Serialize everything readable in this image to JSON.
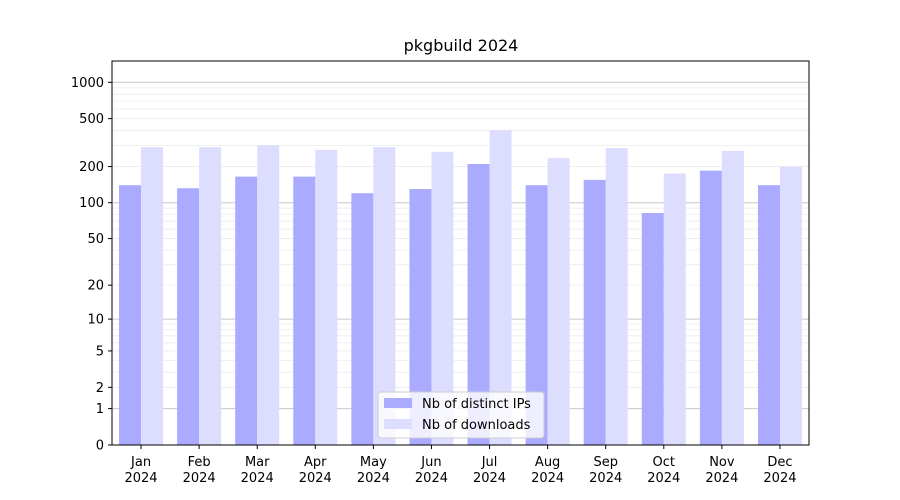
{
  "chart_data": {
    "type": "bar",
    "title": "pkgbuild 2024",
    "scale": "symlog",
    "categories": [
      {
        "month": "Jan",
        "year": "2024"
      },
      {
        "month": "Feb",
        "year": "2024"
      },
      {
        "month": "Mar",
        "year": "2024"
      },
      {
        "month": "Apr",
        "year": "2024"
      },
      {
        "month": "May",
        "year": "2024"
      },
      {
        "month": "Jun",
        "year": "2024"
      },
      {
        "month": "Jul",
        "year": "2024"
      },
      {
        "month": "Aug",
        "year": "2024"
      },
      {
        "month": "Sep",
        "year": "2024"
      },
      {
        "month": "Oct",
        "year": "2024"
      },
      {
        "month": "Nov",
        "year": "2024"
      },
      {
        "month": "Dec",
        "year": "2024"
      }
    ],
    "series": [
      {
        "name": "Nb of distinct IPs",
        "color": "#aaaaff",
        "values": [
          140,
          132,
          165,
          165,
          120,
          130,
          210,
          140,
          155,
          82,
          185,
          140
        ]
      },
      {
        "name": "Nb of downloads",
        "color": "#ddddff",
        "values": [
          290,
          290,
          300,
          275,
          290,
          265,
          400,
          235,
          285,
          175,
          270,
          200
        ]
      }
    ],
    "y_ticks": [
      {
        "value": 0,
        "label": "0"
      },
      {
        "value": 1,
        "label": "1"
      },
      {
        "value": 2,
        "label": "2"
      },
      {
        "value": 5,
        "label": "5"
      },
      {
        "value": 10,
        "label": "10"
      },
      {
        "value": 20,
        "label": "20"
      },
      {
        "value": 50,
        "label": "50"
      },
      {
        "value": 100,
        "label": "100"
      },
      {
        "value": 200,
        "label": "200"
      },
      {
        "value": 500,
        "label": "500"
      },
      {
        "value": 1000,
        "label": "1000"
      }
    ],
    "ylim": [
      0,
      1500
    ],
    "grid": true,
    "legend_position": "bottom-center"
  }
}
